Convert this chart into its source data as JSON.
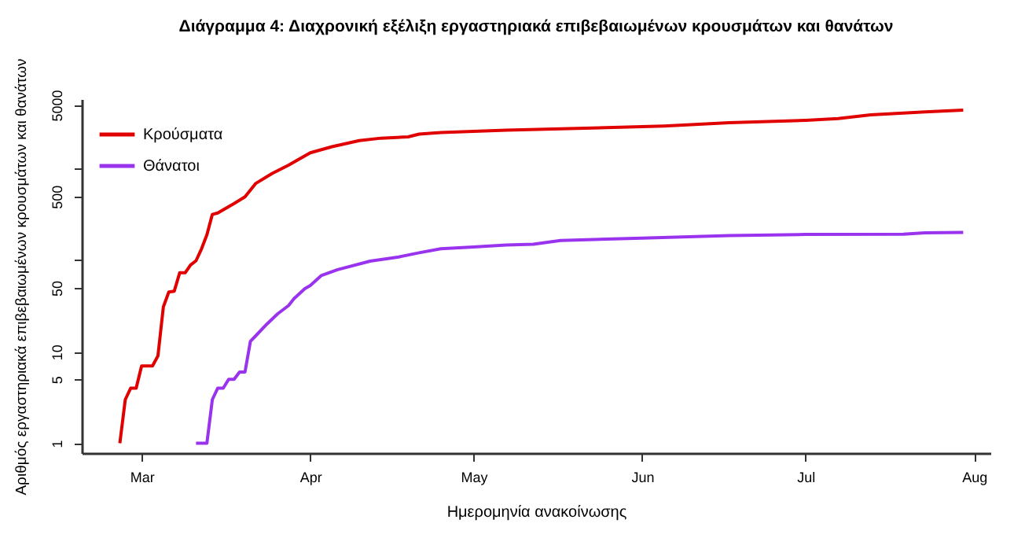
{
  "chart_data": {
    "type": "line",
    "title": "Διάγραμμα 4: Διαχρονική εξέλιξη εργαστηριακά επιβεβαιωμένων κρουσμάτων και θανάτων",
    "xlabel": "Ημερομηνία ανακοίνωσης",
    "ylabel": "Αριθμός εργαστηριακά επιβεβαιωμένων κρουσμάτων και θανάτων",
    "log": "y",
    "grid": false,
    "legend": "top left",
    "line_style": "solid",
    "marker": "none",
    "xlim": [
      "--02-19",
      "--08-04"
    ],
    "xticks": [
      {
        "value": "--03-01",
        "label": "Mar"
      },
      {
        "value": "--04-01",
        "label": "Apr"
      },
      {
        "value": "--05-01",
        "label": "May"
      },
      {
        "value": "--06-01",
        "label": "Jun"
      },
      {
        "value": "--07-01",
        "label": "Jul"
      },
      {
        "value": "--08-01",
        "label": "Aug"
      }
    ],
    "ylim": [
      0.78,
      5800
    ],
    "yticks": [
      1,
      5,
      10,
      50,
      {
        "value": 100,
        "label": null
      },
      500,
      {
        "value": 1000,
        "label": null
      },
      5000
    ],
    "series": [
      {
        "name": "Κρούσματα",
        "color": "#e00000",
        "x": [
          "--02-26",
          "--02-27",
          "--02-28",
          "--02-29",
          "--03-01",
          "--03-03",
          "--03-04",
          "--03-05",
          "--03-06",
          "--03-07",
          "--03-08",
          "--03-09",
          "--03-10",
          "--03-11",
          "--03-12",
          "--03-13",
          "--03-14",
          "--03-15",
          "--03-17",
          "--03-18",
          "--03-20",
          "--03-22",
          "--03-25",
          "--03-28",
          "--04-01",
          "--04-05",
          "--04-10",
          "--04-14",
          "--04-19",
          "--04-21",
          "--04-25",
          "--05-07",
          "--06-01",
          "--06-05",
          "--06-17",
          "--07-01",
          "--07-07",
          "--07-13",
          "--07-23",
          "--07-30"
        ],
        "values": [
          1,
          3,
          4,
          4,
          7,
          7,
          9,
          31,
          45,
          46,
          73,
          73,
          89,
          99,
          133,
          190,
          318,
          330,
          387,
          418,
          495,
          695,
          892,
          1100,
          1500,
          1750,
          2040,
          2170,
          2240,
          2400,
          2500,
          2650,
          2900,
          2950,
          3200,
          3400,
          3550,
          3900,
          4200,
          4400
        ]
      },
      {
        "name": "Θάνατοι",
        "color": "#9933ee",
        "x": [
          "--03-11",
          "--03-13",
          "--03-14",
          "--03-15",
          "--03-16",
          "--03-17",
          "--03-18",
          "--03-19",
          "--03-20",
          "--03-21",
          "--03-22",
          "--03-24",
          "--03-26",
          "--03-28",
          "--03-29",
          "--03-31",
          "--04-01",
          "--04-03",
          "--04-06",
          "--04-12",
          "--04-17",
          "--04-21",
          "--04-25",
          "--05-01",
          "--05-07",
          "--05-12",
          "--05-17",
          "--06-01",
          "--06-17",
          "--07-01",
          "--07-19",
          "--07-23",
          "--07-30"
        ],
        "values": [
          1,
          1,
          3,
          4,
          4,
          5,
          5,
          6,
          6,
          13,
          15,
          20,
          26,
          32,
          38,
          49,
          53,
          68,
          79,
          98,
          108,
          121,
          134,
          140,
          147,
          150,
          165,
          175,
          187,
          192,
          193,
          200,
          202
        ]
      }
    ]
  }
}
